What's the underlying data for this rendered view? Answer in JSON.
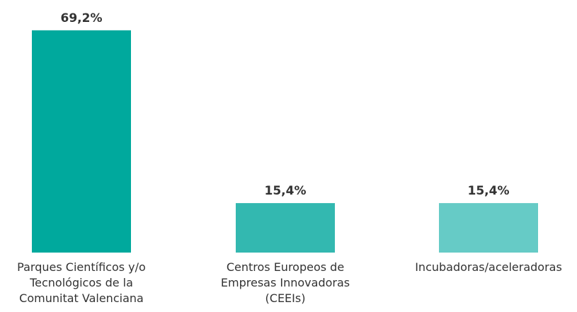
{
  "chart_data": {
    "type": "bar",
    "categories": [
      "Parques Científicos y/o Tecnológicos de la Comunitat Valenciana",
      "Centros Europeos de Empresas Innovadoras (CEEIs)",
      "Incubadoras/aceleradoras"
    ],
    "values": [
      69.2,
      15.4,
      15.4
    ],
    "value_labels": [
      "69,2%",
      "15,4%",
      "15,4%"
    ],
    "colors": [
      "#00a99d",
      "#33b8b0",
      "#66cbc6"
    ]
  }
}
